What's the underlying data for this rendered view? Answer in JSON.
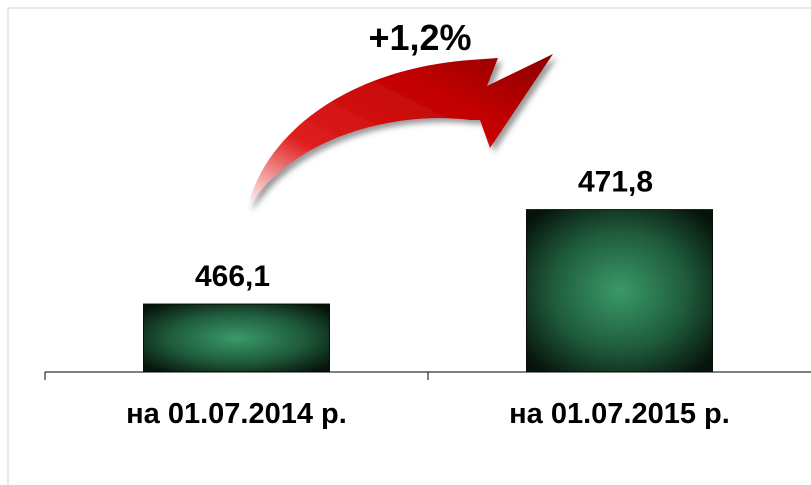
{
  "chart_data": {
    "type": "bar",
    "categories": [
      "на 01.07.2014  р.",
      "на 01.07.2015  р."
    ],
    "values": [
      466.1,
      471.8
    ],
    "data_labels": [
      "466,1",
      "471,8"
    ],
    "title": "",
    "xlabel": "",
    "ylabel": "",
    "ylim": [
      462,
      476
    ],
    "grid": false,
    "legend": "none",
    "annotation": {
      "text": "+1,2%",
      "from_category": 0,
      "to_category": 1,
      "arrow_color": "#cc0000"
    },
    "colors": {
      "bar_center": "#3a9a6a",
      "bar_edge": "#0a1a10",
      "axis": "#000000"
    }
  }
}
